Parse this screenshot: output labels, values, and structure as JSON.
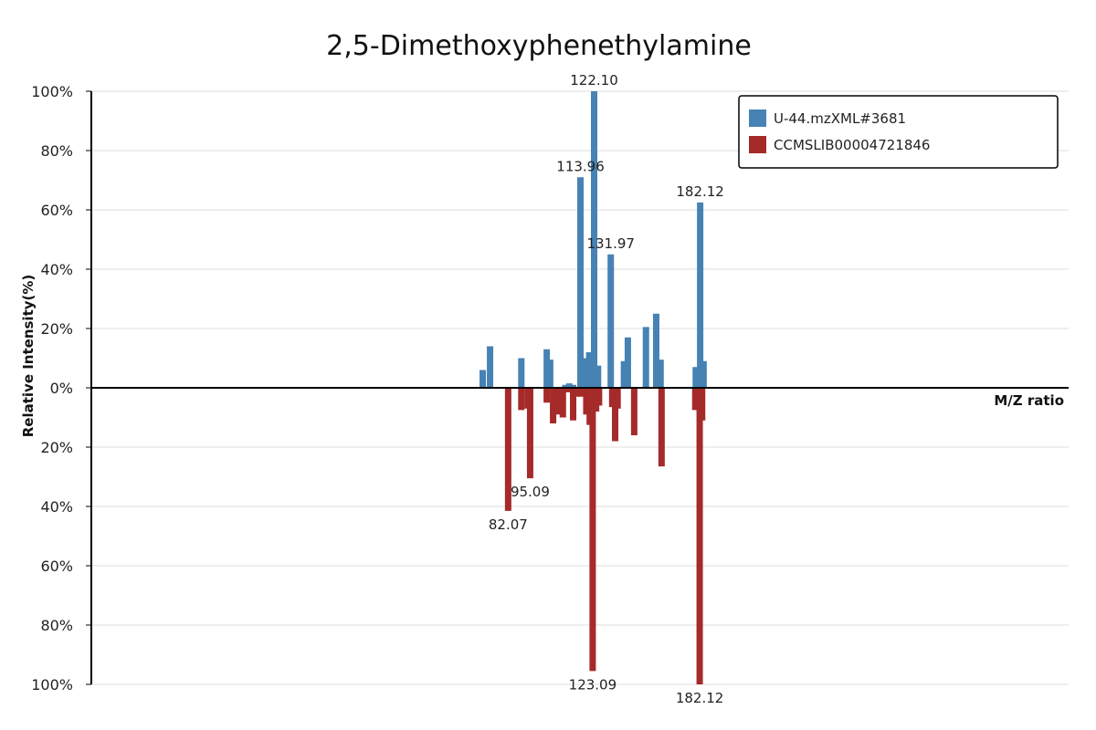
{
  "chart_data": {
    "type": "bar",
    "title": "2,5-Dimethoxyphenethylamine",
    "xlabel": "M/Z ratio",
    "ylabel": "Relative Intensity(%)",
    "x_range": [
      0,
      200
    ],
    "y_ticks": [
      "100%",
      "80%",
      "60%",
      "40%",
      "20%",
      "0%",
      "20%",
      "40%",
      "60%",
      "80%",
      "100%"
    ],
    "grid": true,
    "legend_position": "top-right",
    "series": [
      {
        "name": "U-44.mzXML#3681",
        "color": "#4682b4",
        "direction": "up",
        "peaks": [
          {
            "mz": 80.1,
            "intensity": 6
          },
          {
            "mz": 81.6,
            "intensity": 14
          },
          {
            "mz": 88.0,
            "intensity": 10
          },
          {
            "mz": 93.2,
            "intensity": 13
          },
          {
            "mz": 93.9,
            "intensity": 9.5
          },
          {
            "mz": 97.8,
            "intensity": 1.5
          },
          {
            "mz": 98.6,
            "intensity": 1
          },
          {
            "mz": 97.0,
            "intensity": 1
          },
          {
            "mz": 100.1,
            "intensity": 71
          },
          {
            "mz": 101.2,
            "intensity": 10
          },
          {
            "mz": 101.9,
            "intensity": 12
          },
          {
            "mz": 102.9,
            "intensity": 100
          },
          {
            "mz": 103.7,
            "intensity": 7.5
          },
          {
            "mz": 106.3,
            "intensity": 45
          },
          {
            "mz": 109.0,
            "intensity": 9
          },
          {
            "mz": 109.8,
            "intensity": 17
          },
          {
            "mz": 113.5,
            "intensity": 20.5
          },
          {
            "mz": 115.6,
            "intensity": 25
          },
          {
            "mz": 116.5,
            "intensity": 9.5
          },
          {
            "mz": 123.7,
            "intensity": 7
          },
          {
            "mz": 124.6,
            "intensity": 62.5
          },
          {
            "mz": 125.3,
            "intensity": 9
          }
        ],
        "labels": [
          {
            "mz": 102.9,
            "intensity": 100,
            "text": "122.10"
          },
          {
            "mz": 100.1,
            "intensity": 71,
            "text": "113.96"
          },
          {
            "mz": 106.3,
            "intensity": 45,
            "text": "131.97"
          },
          {
            "mz": 124.6,
            "intensity": 62.5,
            "text": "182.12"
          }
        ]
      },
      {
        "name": "CCMSLIB00004721846",
        "color": "#a52a2a",
        "direction": "down",
        "peaks": [
          {
            "mz": 85.3,
            "intensity": 41.5
          },
          {
            "mz": 88.0,
            "intensity": 7.5
          },
          {
            "mz": 89.3,
            "intensity": 7
          },
          {
            "mz": 89.8,
            "intensity": 30.5
          },
          {
            "mz": 93.2,
            "intensity": 5
          },
          {
            "mz": 94.5,
            "intensity": 12
          },
          {
            "mz": 95.7,
            "intensity": 9
          },
          {
            "mz": 96.5,
            "intensity": 10
          },
          {
            "mz": 97.6,
            "intensity": 1.5
          },
          {
            "mz": 98.6,
            "intensity": 11
          },
          {
            "mz": 99.3,
            "intensity": 3
          },
          {
            "mz": 100.3,
            "intensity": 3
          },
          {
            "mz": 101.3,
            "intensity": 9
          },
          {
            "mz": 102.0,
            "intensity": 12.5
          },
          {
            "mz": 102.6,
            "intensity": 95.5
          },
          {
            "mz": 103.3,
            "intensity": 8
          },
          {
            "mz": 103.9,
            "intensity": 6
          },
          {
            "mz": 106.6,
            "intensity": 6.5
          },
          {
            "mz": 107.2,
            "intensity": 18
          },
          {
            "mz": 107.7,
            "intensity": 7
          },
          {
            "mz": 111.1,
            "intensity": 16
          },
          {
            "mz": 116.7,
            "intensity": 26.5
          },
          {
            "mz": 123.6,
            "intensity": 7.5
          },
          {
            "mz": 124.5,
            "intensity": 100
          },
          {
            "mz": 125.0,
            "intensity": 11
          }
        ],
        "labels": [
          {
            "mz": 85.3,
            "intensity": 41.5,
            "text": "82.07"
          },
          {
            "mz": 89.8,
            "intensity": 30.5,
            "text": "95.09"
          },
          {
            "mz": 102.6,
            "intensity": 95.5,
            "text": "123.09"
          },
          {
            "mz": 124.5,
            "intensity": 100,
            "text": "182.12"
          }
        ]
      }
    ]
  }
}
